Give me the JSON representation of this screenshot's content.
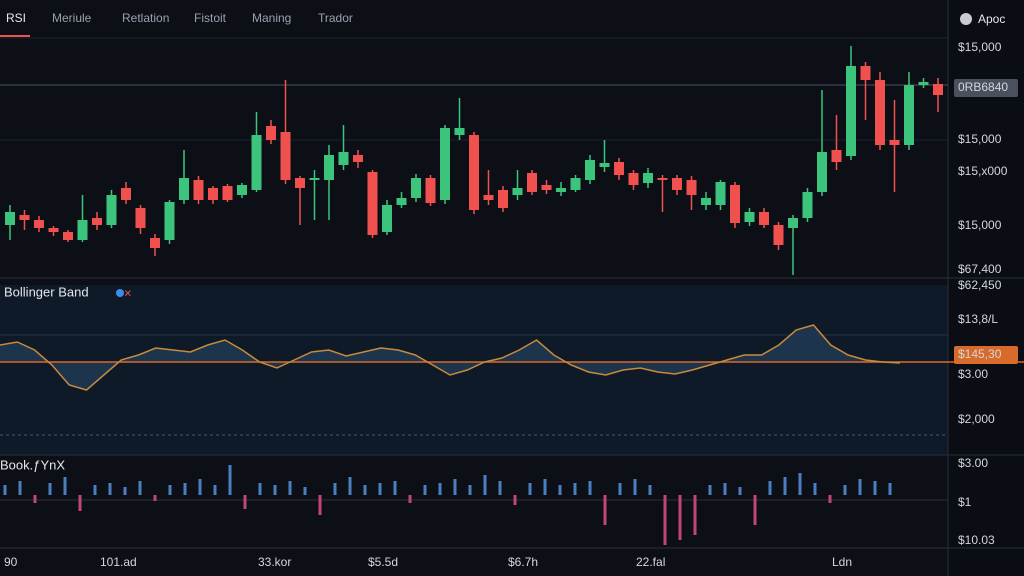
{
  "header": {
    "tabs": [
      "RSI",
      "Meriule",
      "Retlation",
      "Fistoit",
      "Maning",
      "Trador"
    ],
    "account": "Apoc"
  },
  "chart_data": {
    "type": "candlestick",
    "up_color": "#3cc47c",
    "down_color": "#f0514f",
    "candles": [
      [
        75,
        95,
        60,
        88
      ],
      [
        85,
        90,
        70,
        80
      ],
      [
        80,
        84,
        68,
        72
      ],
      [
        72,
        74,
        64,
        68
      ],
      [
        68,
        70,
        58,
        60
      ],
      [
        60,
        105,
        58,
        80
      ],
      [
        82,
        88,
        70,
        75
      ],
      [
        75,
        110,
        72,
        105
      ],
      [
        112,
        118,
        96,
        100
      ],
      [
        92,
        95,
        66,
        72
      ],
      [
        62,
        66,
        44,
        52
      ],
      [
        60,
        100,
        56,
        98
      ],
      [
        100,
        150,
        96,
        122
      ],
      [
        120,
        124,
        96,
        100
      ],
      [
        112,
        114,
        96,
        100
      ],
      [
        114,
        116,
        98,
        100
      ],
      [
        105,
        117,
        102,
        115
      ],
      [
        110,
        188,
        108,
        165
      ],
      [
        174,
        180,
        156,
        160
      ],
      [
        168,
        220,
        116,
        120
      ],
      [
        122,
        124,
        75,
        112
      ],
      [
        120,
        130,
        80,
        122
      ],
      [
        120,
        155,
        80,
        145
      ],
      [
        135,
        175,
        130,
        148
      ],
      [
        145,
        150,
        132,
        138
      ],
      [
        128,
        130,
        62,
        65
      ],
      [
        68,
        100,
        65,
        95
      ],
      [
        95,
        108,
        92,
        102
      ],
      [
        102,
        126,
        98,
        122
      ],
      [
        122,
        125,
        94,
        97
      ],
      [
        100,
        175,
        96,
        172
      ],
      [
        165,
        202,
        160,
        172
      ],
      [
        165,
        168,
        86,
        90
      ],
      [
        105,
        130,
        95,
        100
      ],
      [
        110,
        114,
        88,
        92
      ],
      [
        105,
        130,
        100,
        112
      ],
      [
        127,
        130,
        105,
        108
      ],
      [
        115,
        120,
        106,
        110
      ],
      [
        108,
        118,
        104,
        112
      ],
      [
        110,
        125,
        108,
        122
      ],
      [
        120,
        145,
        116,
        140
      ],
      [
        133,
        160,
        128,
        137
      ],
      [
        138,
        142,
        120,
        125
      ],
      [
        127,
        130,
        110,
        115
      ],
      [
        117,
        132,
        112,
        127
      ],
      [
        122,
        125,
        88,
        120
      ],
      [
        122,
        125,
        105,
        110
      ],
      [
        120,
        124,
        90,
        105
      ],
      [
        95,
        108,
        90,
        102
      ],
      [
        95,
        120,
        90,
        118
      ],
      [
        115,
        118,
        72,
        77
      ],
      [
        78,
        92,
        74,
        88
      ],
      [
        88,
        92,
        72,
        75
      ],
      [
        75,
        78,
        50,
        55
      ],
      [
        72,
        85,
        25,
        82
      ],
      [
        82,
        112,
        78,
        108
      ],
      [
        108,
        210,
        104,
        148
      ],
      [
        150,
        185,
        130,
        138
      ],
      [
        144,
        254,
        140,
        234
      ],
      [
        234,
        238,
        180,
        220
      ],
      [
        220,
        228,
        150,
        155
      ],
      [
        160,
        200,
        108,
        155
      ],
      [
        155,
        228,
        150,
        215
      ],
      [
        215,
        222,
        212,
        218
      ],
      [
        216,
        222,
        188,
        205
      ]
    ],
    "price_labels": [
      "$15,000",
      "0RB6840",
      "$15,000",
      "$15,x000",
      "$15,000",
      "$67,400",
      "$62,450"
    ],
    "indicator": {
      "title": "Bollinger Band",
      "line_color": "#c98a3c",
      "fill_color": "#1f3b55",
      "values": [
        17,
        20,
        12,
        -3,
        -23,
        -28,
        -13,
        2,
        7,
        14,
        12,
        10,
        17,
        22,
        12,
        0,
        -6,
        2,
        10,
        12,
        6,
        10,
        14,
        12,
        7,
        -3,
        -13,
        -8,
        0,
        4,
        12,
        22,
        7,
        -3,
        -10,
        -13,
        -8,
        -6,
        -10,
        -12,
        -8,
        -3,
        2,
        7,
        7,
        17,
        32,
        37,
        17,
        7,
        2,
        0,
        -1
      ],
      "labels": [
        "$13,8/L",
        "$145,30",
        "$3.00",
        "$2,000"
      ]
    },
    "volume": {
      "title": "Book.ƒYnX",
      "up_color": "#4a7fc1",
      "down_color": "#c2457a",
      "values": [
        10,
        14,
        -8,
        12,
        18,
        -16,
        10,
        12,
        8,
        14,
        -6,
        10,
        12,
        16,
        10,
        30,
        -14,
        12,
        10,
        14,
        8,
        -20,
        12,
        18,
        10,
        12,
        14,
        -8,
        10,
        12,
        16,
        10,
        20,
        14,
        -10,
        12,
        16,
        10,
        12,
        14,
        -30,
        12,
        16,
        10,
        -50,
        -45,
        -40,
        10,
        12,
        8,
        -30,
        14,
        18,
        22,
        12,
        -8,
        10,
        16,
        14,
        12
      ],
      "labels": [
        "$3.00",
        "$1",
        "$10.03"
      ]
    },
    "x_labels": [
      "90",
      "101.ad",
      "33.kor",
      "$5.5d",
      "$6.7h",
      "22.fal",
      "Ldn"
    ]
  }
}
